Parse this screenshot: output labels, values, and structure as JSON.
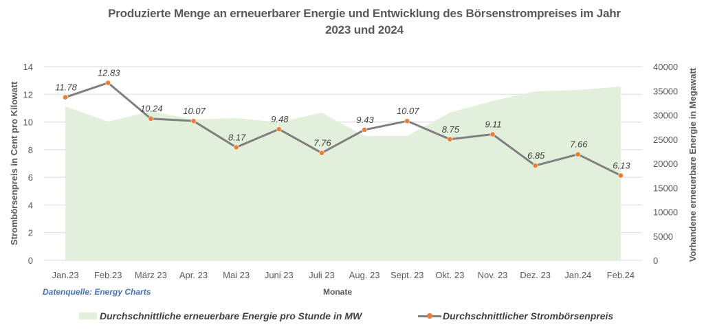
{
  "chart_data": {
    "type": "area+line",
    "title": "Produzierte Menge an erneuerbarer Energie und Entwicklung des Börsenstrompreises im Jahr 2023  und 2024",
    "title_lines": [
      "Produzierte Menge an erneuerbarer Energie und Entwicklung des Börsenstrompreises im Jahr",
      "2023  und 2024"
    ],
    "xlabel": "Monate",
    "ylabel_left": "Strombörsenpreis in Cent pro Kilowatt",
    "ylabel_right": "Vorhandene erneuerbare Energie in Megawatt",
    "ylim_left": [
      0,
      14
    ],
    "ylim_right": [
      0,
      40000
    ],
    "yticks_left": [
      "0",
      "2",
      "4",
      "6",
      "8",
      "10",
      "12",
      "14"
    ],
    "yticks_right": [
      "0",
      "5000",
      "10000",
      "15000",
      "20000",
      "25000",
      "30000",
      "35000",
      "40000"
    ],
    "grid": true,
    "legend_position": "bottom",
    "categories": [
      "Jan.23",
      "Feb.23",
      "März 23",
      "Apr. 23",
      "Mai 23",
      "Juni 23",
      "Juli 23",
      "Aug. 23",
      "Sept. 23",
      "Okt. 23",
      "Nov. 23",
      "Dez. 23",
      "Jan.24",
      "Feb.24"
    ],
    "series": [
      {
        "name": "Durchschnittliche erneuerbare Energie pro Stunde in MW",
        "type": "area",
        "axis": "right",
        "color": "#e2efda",
        "values": [
          31770,
          28650,
          30780,
          29080,
          29360,
          28510,
          30500,
          25670,
          25670,
          30500,
          32910,
          34890,
          35180,
          35890
        ]
      },
      {
        "name": "Durchschnittlicher Strombörsenpreis",
        "type": "line",
        "axis": "left",
        "color": "#7f7f7f",
        "marker_color": "#ed7d31",
        "values": [
          11.78,
          12.83,
          10.24,
          10.07,
          8.17,
          9.48,
          7.76,
          9.43,
          10.07,
          8.75,
          9.11,
          6.85,
          7.66,
          6.13
        ],
        "data_labels": [
          "11.78",
          "12.83",
          "10.24",
          "10.07",
          "8.17",
          "9.48",
          "7.76",
          "9.43",
          "10.07",
          "8.75",
          "9.11",
          "6.85",
          "7.66",
          "6.13"
        ]
      }
    ],
    "annotations": [
      "Datenquelle: Energy Charts"
    ]
  },
  "source_note": "Datenquelle: Energy Charts"
}
